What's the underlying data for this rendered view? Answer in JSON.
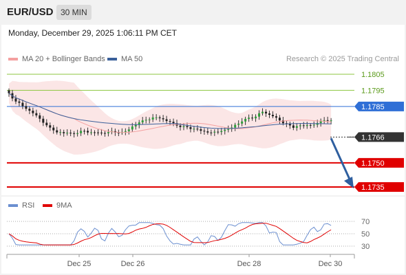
{
  "header": {
    "symbol": "EUR/USD",
    "interval": "30 MIN",
    "timestamp": "Monday, December 29, 2025 1:06:11 PM CET"
  },
  "legend": {
    "ma20": "MA 20 + Bollinger Bands",
    "ma50": "MA 50",
    "rsi": "RSI",
    "ma9": "9MA",
    "credit": "Research © 2025 Trading Central"
  },
  "colors": {
    "ma20": "#f4a0a0",
    "ma50": "#3a5f9a",
    "rsi": "#6b8fd0",
    "ma9": "#e00000",
    "resistance": "#8cc63f",
    "pivot": "#2f6fd6",
    "support": "#e00000",
    "current": "#333333"
  },
  "levels": [
    {
      "label": "1.1805",
      "type": "resistance"
    },
    {
      "label": "1.1795",
      "type": "resistance"
    },
    {
      "label": "1.1785",
      "type": "pivot"
    },
    {
      "label": "1.1766",
      "type": "current"
    },
    {
      "label": "1.1750",
      "type": "support"
    },
    {
      "label": "1.1735",
      "type": "support"
    }
  ],
  "rsi_axis": [
    "70",
    "50",
    "30"
  ],
  "x_axis": [
    "Dec 25",
    "Dec 26",
    "Dec 28",
    "Dec 30"
  ]
}
